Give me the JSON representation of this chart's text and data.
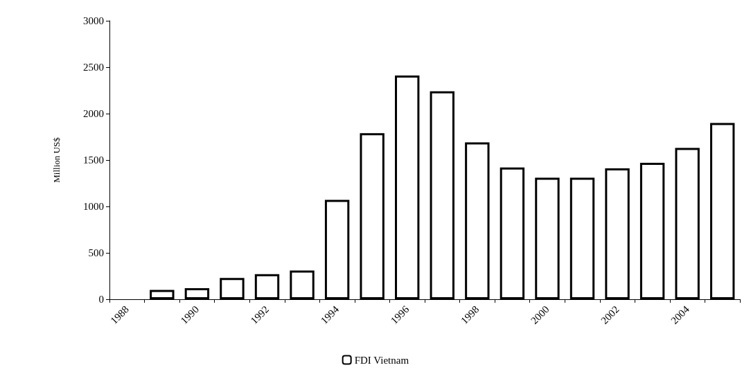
{
  "chart_data": {
    "type": "bar",
    "ylabel": "Million US$",
    "categories": [
      "1988",
      null,
      "1990",
      null,
      "1992",
      null,
      "1994",
      null,
      "1996",
      null,
      "1998",
      null,
      "2000",
      null,
      "2002",
      null,
      "2004",
      null
    ],
    "series": [
      {
        "name": "FDI Vietnam",
        "color": "#ffffff",
        "values": [
          null,
          100,
          120,
          230,
          270,
          310,
          1070,
          1790,
          2410,
          2240,
          1690,
          1420,
          1310,
          1310,
          1410,
          1470,
          1630,
          1900
        ]
      }
    ],
    "ylim": [
      0,
      3000
    ],
    "yticks": [
      0,
      500,
      1000,
      1500,
      2000,
      2500,
      3000
    ],
    "grid": false,
    "legend": "bottom"
  }
}
